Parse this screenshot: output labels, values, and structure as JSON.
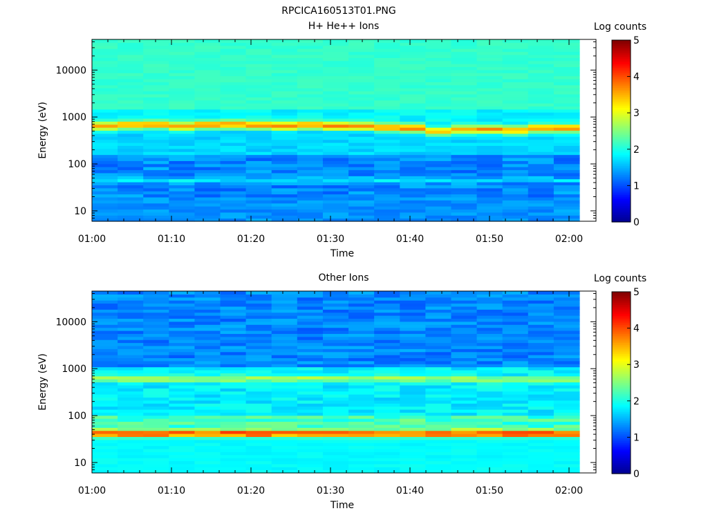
{
  "figure": {
    "title": "RPCICA160513T01.PNG"
  },
  "colormap": [
    "#00008f",
    "#0000ff",
    "#0080ff",
    "#00ffff",
    "#80ff80",
    "#ffff00",
    "#ff8000",
    "#ff0000",
    "#800000"
  ],
  "chart_data": [
    {
      "type": "heatmap",
      "title": "H+ He++ Ions",
      "xlabel": "Time",
      "ylabel": "Energy (eV)",
      "x_ticks": [
        "01:00",
        "01:10",
        "01:20",
        "01:30",
        "01:40",
        "01:50",
        "02:00"
      ],
      "x_range": [
        "01:00",
        "02:01"
      ],
      "y_scale": "log",
      "y_ticks": [
        "10",
        "100",
        "1000",
        "10000"
      ],
      "y_range": [
        6,
        45000
      ],
      "colorbar": {
        "label": "Log counts",
        "ticks": [
          "0",
          "1",
          "2",
          "3",
          "4",
          "5"
        ],
        "range": [
          0,
          5
        ]
      },
      "description_of_features": [
        {
          "energy_eV": [
            450,
            900
          ],
          "log_counts": [
            3.0,
            4.0
          ],
          "note": "intense band"
        },
        {
          "energy_eV": [
            40,
            50
          ],
          "log_counts": [
            2.0,
            2.2
          ]
        },
        {
          "energy_eV": [
            6,
            400
          ],
          "log_counts": [
            1.0,
            1.8
          ]
        },
        {
          "energy_eV": [
            1500,
            45000
          ],
          "log_counts": [
            2.0,
            2.3
          ]
        }
      ],
      "band_center_eV_by_time": [
        650,
        700,
        700,
        650,
        700,
        700,
        680,
        650,
        700,
        650,
        650,
        600,
        580,
        500,
        550,
        550,
        520,
        580
      ]
    },
    {
      "type": "heatmap",
      "title": "Other Ions",
      "xlabel": "Time",
      "ylabel": "Energy (eV)",
      "x_ticks": [
        "01:00",
        "01:10",
        "01:20",
        "01:30",
        "01:40",
        "01:50",
        "02:00"
      ],
      "x_range": [
        "01:00",
        "02:01"
      ],
      "y_scale": "log",
      "y_ticks": [
        "10",
        "100",
        "1000",
        "10000"
      ],
      "y_range": [
        6,
        45000
      ],
      "colorbar": {
        "label": "Log counts",
        "ticks": [
          "0",
          "1",
          "2",
          "3",
          "4",
          "5"
        ],
        "range": [
          0,
          5
        ]
      },
      "description_of_features": [
        {
          "energy_eV": [
            35,
            50
          ],
          "log_counts": [
            3.5,
            4.0
          ],
          "note": "intense band"
        },
        {
          "energy_eV": [
            500,
            800
          ],
          "log_counts": [
            2.4,
            2.8
          ]
        },
        {
          "energy_eV": [
            1000,
            45000
          ],
          "log_counts": [
            1.0,
            1.5
          ]
        },
        {
          "energy_eV": [
            6,
            30
          ],
          "log_counts": [
            1.8,
            2.0
          ]
        }
      ]
    }
  ]
}
